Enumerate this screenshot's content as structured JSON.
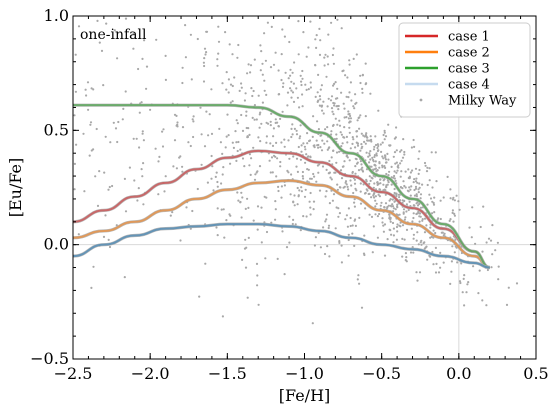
{
  "chart_data": {
    "type": "line",
    "annotation": "one-infall",
    "xlabel": "[Fe/H]",
    "ylabel": "[Eu/Fe]",
    "xlim": [
      -2.5,
      0.5
    ],
    "ylim": [
      -0.5,
      1.0
    ],
    "xticks": [
      -2.5,
      -2.0,
      -1.5,
      -1.0,
      -0.5,
      0.0,
      0.5
    ],
    "xtick_labels": [
      "−2.5",
      "−2.0",
      "−1.5",
      "−1.0",
      "−0.5",
      "0.0",
      "0.5"
    ],
    "yticks": [
      -0.5,
      0.0,
      0.5,
      1.0
    ],
    "ytick_labels": [
      "−0.5",
      "0.0",
      "0.5",
      "1.0"
    ],
    "reference_lines": {
      "x": 0.0,
      "y": 0.0,
      "color": "#d9d9d9"
    },
    "legend": {
      "position": "top-right"
    },
    "series": [
      {
        "name": "case 1",
        "color": "#d62728",
        "x": [
          -2.5,
          -2.3,
          -2.1,
          -1.9,
          -1.7,
          -1.5,
          -1.3,
          -1.1,
          -0.9,
          -0.7,
          -0.5,
          -0.3,
          -0.1,
          0.1,
          0.2
        ],
        "y": [
          0.1,
          0.15,
          0.21,
          0.27,
          0.33,
          0.38,
          0.41,
          0.4,
          0.36,
          0.3,
          0.23,
          0.16,
          0.07,
          -0.03,
          -0.1
        ]
      },
      {
        "name": "case 2",
        "color": "#ff7f0e",
        "x": [
          -2.5,
          -2.3,
          -2.1,
          -1.9,
          -1.7,
          -1.5,
          -1.3,
          -1.1,
          -0.9,
          -0.7,
          -0.5,
          -0.3,
          -0.1,
          0.1,
          0.2
        ],
        "y": [
          0.03,
          0.06,
          0.1,
          0.15,
          0.2,
          0.24,
          0.27,
          0.28,
          0.26,
          0.21,
          0.15,
          0.09,
          0.03,
          -0.05,
          -0.1
        ]
      },
      {
        "name": "case 3",
        "color": "#2ca02c",
        "x": [
          -2.5,
          -2.3,
          -2.1,
          -1.9,
          -1.7,
          -1.5,
          -1.3,
          -1.1,
          -0.9,
          -0.7,
          -0.5,
          -0.3,
          -0.1,
          0.1,
          0.2
        ],
        "y": [
          0.61,
          0.61,
          0.61,
          0.61,
          0.61,
          0.61,
          0.6,
          0.56,
          0.49,
          0.4,
          0.3,
          0.2,
          0.09,
          -0.03,
          -0.1
        ]
      },
      {
        "name": "case 4",
        "color": "#1f77b4",
        "legend_color": "#c6dbef",
        "x": [
          -2.5,
          -2.3,
          -2.1,
          -1.9,
          -1.7,
          -1.5,
          -1.3,
          -1.1,
          -0.9,
          -0.7,
          -0.5,
          -0.3,
          -0.1,
          0.1,
          0.2
        ],
        "y": [
          -0.05,
          0.0,
          0.04,
          0.07,
          0.08,
          0.09,
          0.09,
          0.08,
          0.06,
          0.03,
          0.0,
          -0.02,
          -0.05,
          -0.08,
          -0.1
        ]
      }
    ],
    "scatter": {
      "name": "Milky Way",
      "color": "#a8a8a8",
      "marker": "dot"
    }
  }
}
